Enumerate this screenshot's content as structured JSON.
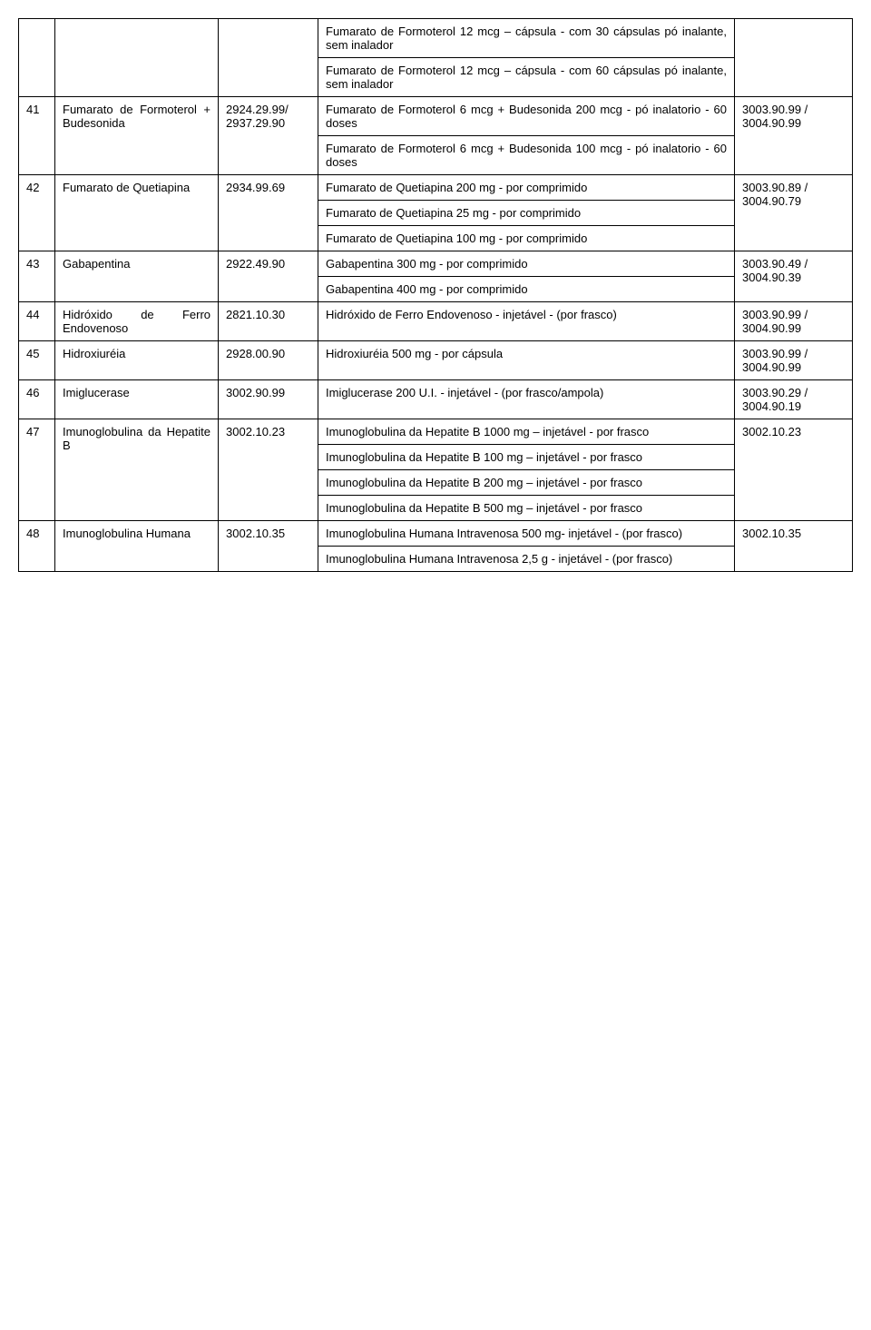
{
  "rows": [
    {
      "num": "",
      "name": "",
      "code1": "",
      "descs": [
        "Fumarato de Formoterol 12 mcg – cápsula - com 30 cápsulas pó inalante, sem inalador",
        "Fumarato de Formoterol 12 mcg – cápsula - com 60 cápsulas pó inalante, sem inalador"
      ],
      "code2": ""
    },
    {
      "num": "41",
      "name": "Fumarato de Formoterol + Budesonida",
      "code1": "2924.29.99/ 2937.29.90",
      "descs": [
        "Fumarato de Formoterol 6 mcg + Budesonida 200 mcg - pó inalatorio - 60 doses",
        "Fumarato de Formoterol 6 mcg + Budesonida 100 mcg - pó inalatorio - 60 doses"
      ],
      "code2": "3003.90.99 / 3004.90.99"
    },
    {
      "num": "42",
      "name": "Fumarato de Quetiapina",
      "code1": "2934.99.69",
      "descs": [
        "Fumarato de Quetiapina 200 mg - por comprimido",
        "Fumarato de Quetiapina 25 mg - por comprimido",
        "Fumarato de Quetiapina 100 mg - por comprimido"
      ],
      "code2": "3003.90.89 / 3004.90.79"
    },
    {
      "num": "43",
      "name": "Gabapentina",
      "code1": "2922.49.90",
      "descs": [
        "Gabapentina 300 mg - por comprimido",
        "Gabapentina 400 mg - por comprimido"
      ],
      "code2": "3003.90.49 / 3004.90.39"
    },
    {
      "num": "44",
      "name": "Hidróxido de Ferro Endovenoso",
      "code1": "2821.10.30",
      "descs": [
        "Hidróxido de Ferro Endovenoso - injetável - (por frasco)"
      ],
      "code2": "3003.90.99 / 3004.90.99"
    },
    {
      "num": "45",
      "name": "Hidroxiuréia",
      "code1": "2928.00.90",
      "descs": [
        "Hidroxiuréia 500 mg - por cápsula"
      ],
      "code2": "3003.90.99 / 3004.90.99"
    },
    {
      "num": "46",
      "name": "Imiglucerase",
      "code1": "3002.90.99",
      "descs": [
        "Imiglucerase 200 U.I. - injetável - (por frasco/ampola)"
      ],
      "code2": "3003.90.29 / 3004.90.19"
    },
    {
      "num": "47",
      "name": "Imunoglobulina da Hepatite B",
      "code1": "3002.10.23",
      "descs": [
        "Imunoglobulina da Hepatite B 1000 mg – injetável - por frasco",
        "Imunoglobulina da Hepatite B 100 mg – injetável - por frasco",
        "Imunoglobulina da Hepatite B 200 mg – injetável - por frasco",
        "Imunoglobulina da Hepatite B 500 mg – injetável - por frasco"
      ],
      "code2": "3002.10.23"
    },
    {
      "num": "48",
      "name": "Imunoglobulina Humana",
      "code1": "3002.10.35",
      "descs": [
        "Imunoglobulina Humana Intravenosa 500 mg- injetável - (por frasco)",
        "Imunoglobulina Humana Intravenosa 2,5 g - injetável - (por frasco)"
      ],
      "code2": "3002.10.35"
    }
  ]
}
